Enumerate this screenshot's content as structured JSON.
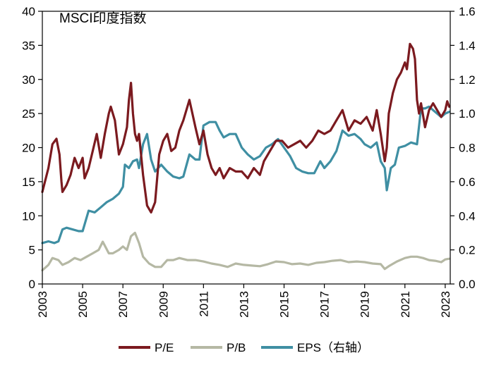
{
  "chart_data": {
    "type": "line",
    "title": "MSCI印度指数",
    "x_start": 2003,
    "x_end": 2023.25,
    "x_ticks": [
      2003,
      2005,
      2007,
      2009,
      2011,
      2013,
      2015,
      2017,
      2019,
      2021,
      2023
    ],
    "x_tick_labels": [
      "2003",
      "2005",
      "2007",
      "2009",
      "2011",
      "2013",
      "2015",
      "2017",
      "2019",
      "2021",
      "2023"
    ],
    "y_left": {
      "range": [
        0,
        40
      ],
      "ticks": [
        0,
        5,
        10,
        15,
        20,
        25,
        30,
        35,
        40
      ],
      "tick_labels": [
        "0",
        "5",
        "10",
        "15",
        "20",
        "25",
        "30",
        "35",
        "40"
      ]
    },
    "y_right": {
      "range": [
        0,
        1.6
      ],
      "ticks": [
        0,
        0.2,
        0.4,
        0.6,
        0.8,
        1.0,
        1.2,
        1.4,
        1.6
      ],
      "tick_labels": [
        "0.0",
        "0.2",
        "0.4",
        "0.6",
        "0.8",
        "1.0",
        "1.2",
        "1.4",
        "1.6"
      ]
    },
    "grid": false,
    "legend_position": "bottom",
    "series": [
      {
        "name": "P/E",
        "legend_label": "P/E",
        "axis": "left",
        "color": "#7b1a1f",
        "x": [
          2003.0,
          2003.3,
          2003.5,
          2003.7,
          2003.85,
          2003.95,
          2004.0,
          2004.2,
          2004.4,
          2004.6,
          2004.8,
          2005.0,
          2005.1,
          2005.3,
          2005.5,
          2005.7,
          2005.9,
          2006.1,
          2006.3,
          2006.4,
          2006.6,
          2006.8,
          2007.0,
          2007.2,
          2007.3,
          2007.4,
          2007.5,
          2007.6,
          2007.7,
          2007.8,
          2008.0,
          2008.2,
          2008.4,
          2008.6,
          2008.8,
          2009.0,
          2009.2,
          2009.4,
          2009.6,
          2009.8,
          2010.0,
          2010.3,
          2010.6,
          2010.8,
          2011.0,
          2011.2,
          2011.4,
          2011.6,
          2011.8,
          2012.0,
          2012.3,
          2012.6,
          2012.9,
          2013.2,
          2013.5,
          2013.8,
          2014.0,
          2014.3,
          2014.6,
          2014.9,
          2015.2,
          2015.5,
          2015.8,
          2016.1,
          2016.4,
          2016.7,
          2017.0,
          2017.3,
          2017.6,
          2017.9,
          2018.2,
          2018.5,
          2018.8,
          2019.1,
          2019.4,
          2019.6,
          2019.8,
          2020.0,
          2020.1,
          2020.2,
          2020.4,
          2020.6,
          2020.8,
          2021.0,
          2021.1,
          2021.25,
          2021.4,
          2021.5,
          2021.6,
          2021.7,
          2021.8,
          2022.0,
          2022.2,
          2022.4,
          2022.6,
          2022.8,
          2023.0,
          2023.1,
          2023.2
        ],
        "values": [
          13.5,
          17.0,
          20.5,
          21.3,
          19.0,
          15.0,
          13.5,
          14.5,
          16.0,
          18.5,
          17.0,
          18.5,
          15.5,
          17.0,
          19.5,
          22.0,
          18.5,
          22.0,
          25.0,
          26.0,
          24.0,
          19.0,
          20.5,
          23.0,
          27.0,
          29.5,
          25.0,
          22.0,
          21.0,
          22.0,
          16.0,
          11.5,
          10.5,
          12.0,
          19.0,
          21.0,
          22.0,
          19.5,
          20.0,
          22.5,
          24.0,
          27.0,
          23.0,
          20.5,
          22.5,
          19.0,
          17.0,
          16.0,
          17.0,
          15.5,
          17.0,
          16.5,
          16.5,
          15.5,
          17.0,
          16.0,
          18.0,
          19.5,
          21.0,
          21.0,
          20.0,
          20.5,
          21.0,
          20.0,
          21.0,
          22.5,
          22.0,
          22.5,
          24.0,
          25.5,
          22.5,
          24.0,
          23.5,
          24.5,
          22.5,
          25.5,
          22.0,
          18.0,
          20.0,
          25.0,
          28.0,
          30.0,
          31.0,
          32.5,
          31.5,
          35.2,
          34.5,
          33.0,
          27.0,
          25.0,
          26.5,
          23.0,
          25.5,
          26.5,
          25.5,
          24.5,
          25.5,
          26.8,
          26.0
        ]
      },
      {
        "name": "P/B",
        "legend_label": "P/B",
        "axis": "left",
        "color": "#b5b8a4",
        "x": [
          2003.0,
          2003.3,
          2003.5,
          2003.8,
          2004.0,
          2004.3,
          2004.6,
          2004.9,
          2005.2,
          2005.5,
          2005.8,
          2006.0,
          2006.3,
          2006.5,
          2006.8,
          2007.0,
          2007.2,
          2007.4,
          2007.6,
          2007.8,
          2008.0,
          2008.3,
          2008.6,
          2008.9,
          2009.2,
          2009.5,
          2009.8,
          2010.2,
          2010.6,
          2011.0,
          2011.4,
          2011.8,
          2012.2,
          2012.6,
          2013.0,
          2013.4,
          2013.8,
          2014.2,
          2014.6,
          2015.0,
          2015.4,
          2015.8,
          2016.2,
          2016.6,
          2017.0,
          2017.4,
          2017.8,
          2018.2,
          2018.6,
          2019.0,
          2019.4,
          2019.8,
          2020.0,
          2020.2,
          2020.6,
          2021.0,
          2021.3,
          2021.6,
          2021.9,
          2022.2,
          2022.5,
          2022.8,
          2023.0,
          2023.2
        ],
        "values": [
          2.0,
          2.8,
          3.8,
          3.5,
          2.8,
          3.2,
          3.8,
          3.5,
          4.0,
          4.5,
          5.0,
          6.2,
          4.5,
          4.5,
          5.0,
          5.5,
          5.0,
          7.0,
          7.5,
          6.0,
          4.0,
          3.0,
          2.5,
          2.5,
          3.5,
          3.5,
          3.8,
          3.5,
          3.5,
          3.3,
          3.0,
          2.8,
          2.5,
          3.0,
          2.8,
          2.7,
          2.6,
          2.9,
          3.3,
          3.2,
          2.9,
          3.0,
          2.8,
          3.1,
          3.2,
          3.4,
          3.5,
          3.2,
          3.3,
          3.2,
          3.0,
          2.9,
          2.2,
          2.6,
          3.3,
          3.8,
          4.0,
          4.0,
          3.8,
          3.5,
          3.4,
          3.2,
          3.6,
          3.7
        ]
      },
      {
        "name": "EPS（右轴）",
        "legend_label": "EPS（右轴）",
        "axis": "right",
        "color": "#3f8fa3",
        "x": [
          2003.0,
          2003.3,
          2003.6,
          2003.8,
          2004.0,
          2004.2,
          2004.5,
          2004.8,
          2005.0,
          2005.3,
          2005.6,
          2005.9,
          2006.2,
          2006.5,
          2006.8,
          2007.0,
          2007.1,
          2007.3,
          2007.5,
          2007.7,
          2007.8,
          2008.0,
          2008.2,
          2008.4,
          2008.6,
          2008.9,
          2009.2,
          2009.5,
          2009.8,
          2010.0,
          2010.3,
          2010.6,
          2010.8,
          2011.0,
          2011.3,
          2011.6,
          2011.8,
          2012.0,
          2012.3,
          2012.6,
          2012.9,
          2013.2,
          2013.5,
          2013.8,
          2014.1,
          2014.4,
          2014.7,
          2015.0,
          2015.3,
          2015.6,
          2015.9,
          2016.2,
          2016.5,
          2016.8,
          2017.0,
          2017.3,
          2017.6,
          2017.9,
          2018.2,
          2018.5,
          2018.8,
          2019.0,
          2019.3,
          2019.6,
          2019.8,
          2020.0,
          2020.1,
          2020.3,
          2020.5,
          2020.7,
          2021.0,
          2021.3,
          2021.6,
          2021.8,
          2022.0,
          2022.2,
          2022.4,
          2022.6,
          2022.8,
          2023.0,
          2023.2
        ],
        "values": [
          0.24,
          0.25,
          0.24,
          0.25,
          0.32,
          0.33,
          0.32,
          0.31,
          0.31,
          0.43,
          0.42,
          0.45,
          0.48,
          0.5,
          0.53,
          0.57,
          0.7,
          0.68,
          0.72,
          0.73,
          0.68,
          0.82,
          0.88,
          0.73,
          0.66,
          0.7,
          0.66,
          0.63,
          0.62,
          0.63,
          0.76,
          0.73,
          0.73,
          0.93,
          0.95,
          0.95,
          0.9,
          0.86,
          0.88,
          0.88,
          0.8,
          0.76,
          0.73,
          0.75,
          0.8,
          0.82,
          0.85,
          0.8,
          0.75,
          0.68,
          0.66,
          0.65,
          0.65,
          0.72,
          0.68,
          0.72,
          0.78,
          0.9,
          0.87,
          0.88,
          0.85,
          0.82,
          0.8,
          0.83,
          0.72,
          0.68,
          0.55,
          0.68,
          0.7,
          0.8,
          0.81,
          0.83,
          0.82,
          1.03,
          1.03,
          1.04,
          1.02,
          1.0,
          0.98,
          1.0,
          1.01
        ]
      }
    ]
  }
}
